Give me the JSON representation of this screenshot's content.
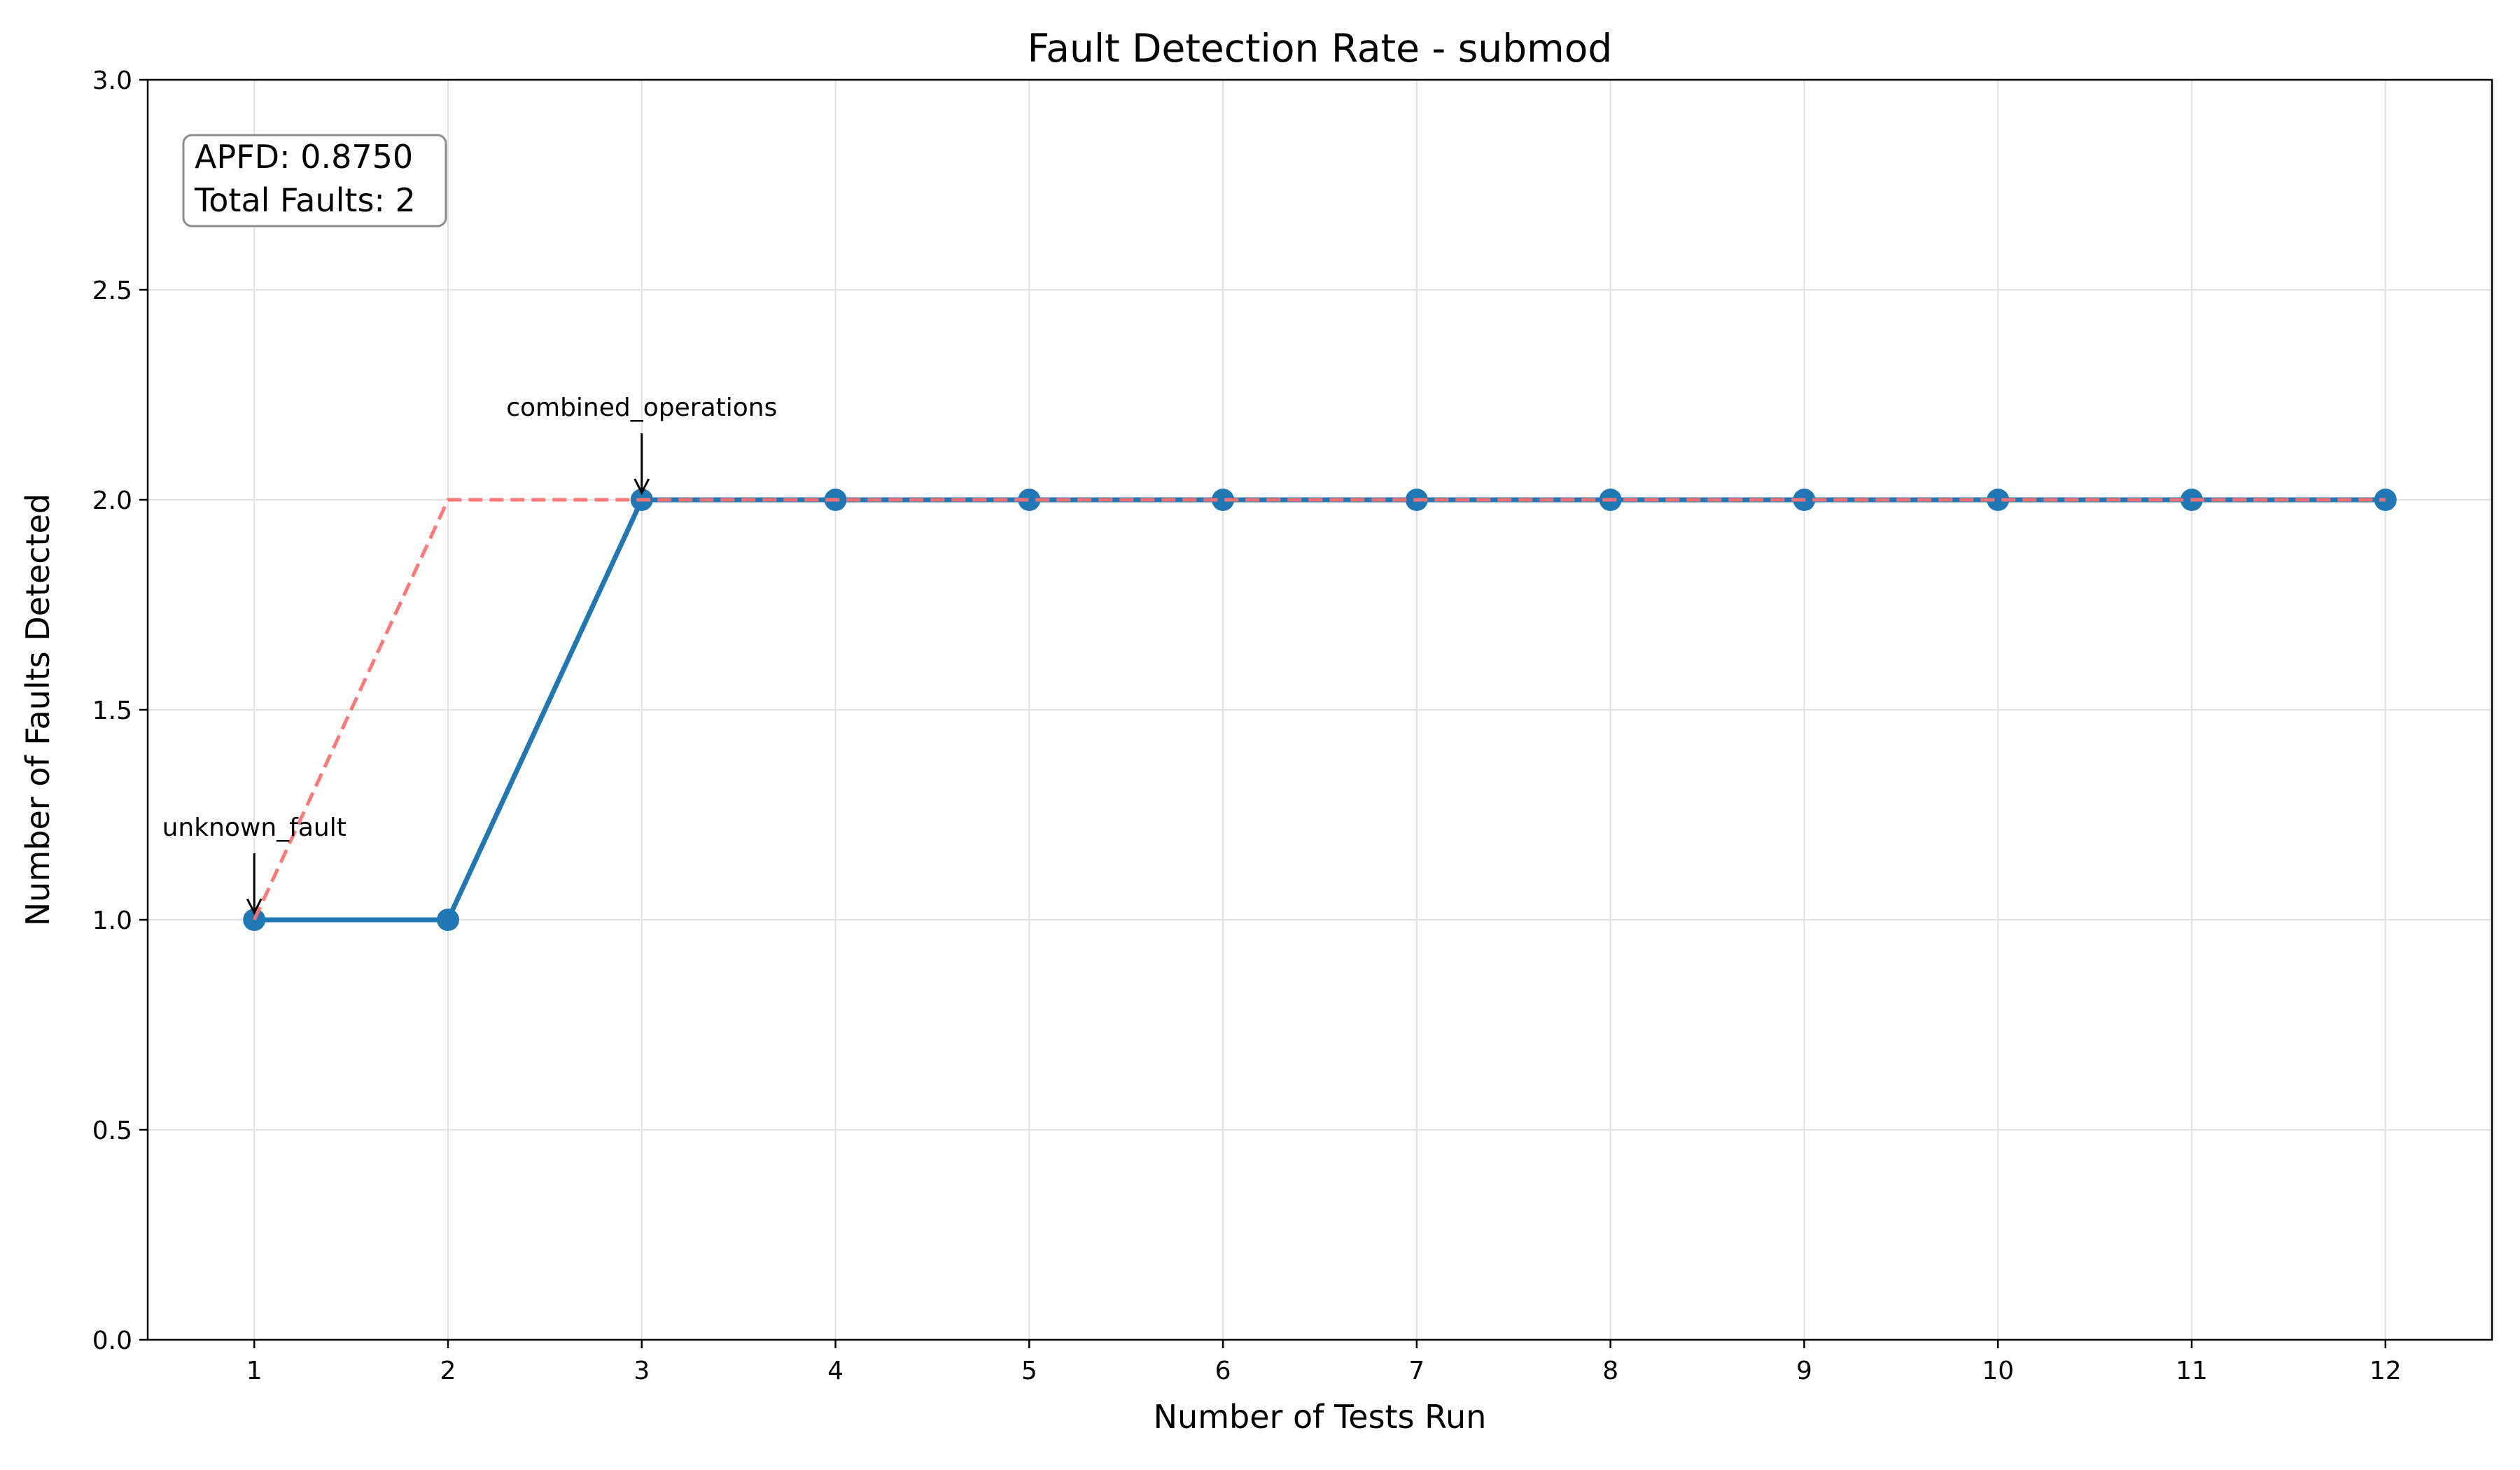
{
  "chart_data": {
    "type": "line",
    "title": "Fault Detection Rate - submod",
    "xlabel": "Number of Tests Run",
    "ylabel": "Number of Faults Detected",
    "xlim": [
      0.45,
      12.55
    ],
    "ylim": [
      0,
      3
    ],
    "x_ticks": [
      1,
      2,
      3,
      4,
      5,
      6,
      7,
      8,
      9,
      10,
      11,
      12
    ],
    "x_tick_labels": [
      "1",
      "2",
      "3",
      "4",
      "5",
      "6",
      "7",
      "8",
      "9",
      "10",
      "11",
      "12"
    ],
    "y_ticks": [
      0,
      0.5,
      1,
      1.5,
      2,
      2.5,
      3
    ],
    "y_tick_labels": [
      "0.0",
      "0.5",
      "1.0",
      "1.5",
      "2.0",
      "2.5",
      "3.0"
    ],
    "grid": true,
    "series": [
      {
        "style": "solid-markers",
        "color": "#1f77b4",
        "x": [
          1,
          2,
          3,
          4,
          5,
          6,
          7,
          8,
          9,
          10,
          11,
          12
        ],
        "y": [
          1,
          1,
          2,
          2,
          2,
          2,
          2,
          2,
          2,
          2,
          2,
          2
        ]
      },
      {
        "style": "dashed",
        "color": "#ff7070",
        "x": [
          1,
          2,
          3,
          4,
          5,
          6,
          7,
          8,
          9,
          10,
          11,
          12
        ],
        "y": [
          1,
          2,
          2,
          2,
          2,
          2,
          2,
          2,
          2,
          2,
          2,
          2
        ]
      }
    ],
    "annotations": [
      {
        "text": "unknown_fault",
        "x": 1,
        "y": 1
      },
      {
        "text": "combined_operations",
        "x": 3,
        "y": 2
      }
    ],
    "info_box": {
      "placement": "top-left",
      "lines": [
        "APFD: 0.8750",
        "Total Faults: 2"
      ]
    }
  }
}
